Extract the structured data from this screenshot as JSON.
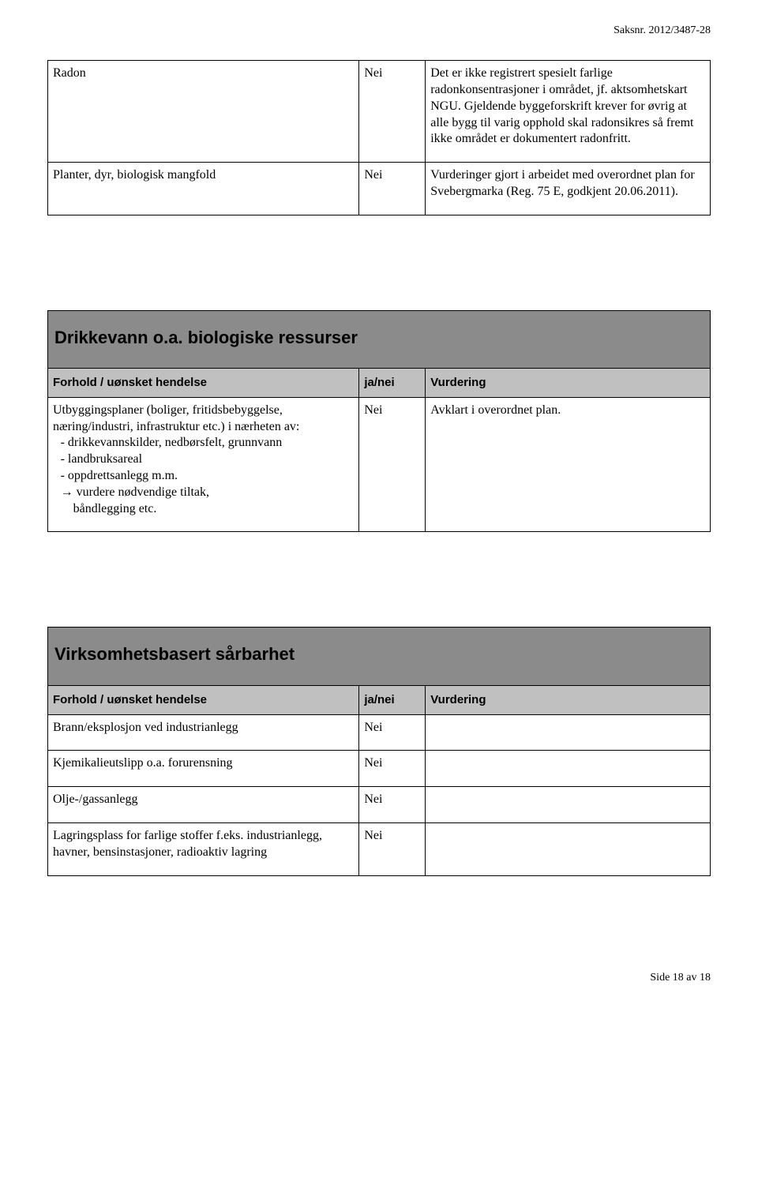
{
  "header": {
    "case_number": "Saksnr. 2012/3487-28"
  },
  "colors": {
    "section_bg": "#8b8b8b",
    "header_bg": "#c0c0c0",
    "border": "#000000",
    "text": "#000000",
    "background": "#ffffff"
  },
  "table1": {
    "rows": [
      {
        "c1": "Radon",
        "c2": "Nei",
        "c3": "Det er ikke registrert spesielt farlige radonkonsentrasjoner i området, jf. aktsomhetskart NGU. Gjeldende byggeforskrift krever for øvrig at alle bygg til varig opphold skal radonsikres så fremt ikke området er dokumentert radonfritt."
      },
      {
        "c1": "Planter, dyr, biologisk mangfold",
        "c2": "Nei",
        "c3": "Vurderinger gjort i arbeidet med overordnet plan for Svebergmarka (Reg. 75 E, godkjent 20.06.2011)."
      }
    ]
  },
  "section_drikkevann": {
    "title": "Drikkevann o.a. biologiske ressurser",
    "header": {
      "h1": "Forhold / uønsket hendelse",
      "h2": "ja/nei",
      "h3": "Vurdering"
    },
    "row": {
      "c1_intro": "Utbyggingsplaner (boliger, fritidsbebyggelse, næring/industri, infrastruktur etc.) i nærheten av:",
      "c1_items": [
        "drikkevannskilder, nedbørsfelt, grunnvann",
        "landbruksareal",
        "oppdrettsanlegg m.m."
      ],
      "c1_arrow1": "→ vurdere nødvendige tiltak,",
      "c1_arrow2": "båndlegging etc.",
      "c2": "Nei",
      "c3": "Avklart i overordnet plan."
    }
  },
  "section_virksomhet": {
    "title": "Virksomhetsbasert sårbarhet",
    "header": {
      "h1": "Forhold / uønsket hendelse",
      "h2": "ja/nei",
      "h3": "Vurdering"
    },
    "rows": [
      {
        "c1": "Brann/eksplosjon ved industrianlegg",
        "c2": "Nei",
        "c3": ""
      },
      {
        "c1": "Kjemikalieutslipp o.a. forurensning",
        "c2": "Nei",
        "c3": ""
      },
      {
        "c1": "Olje-/gassanlegg",
        "c2": "Nei",
        "c3": ""
      },
      {
        "c1": "Lagringsplass for farlige stoffer f.eks. industrianlegg, havner, bensinstasjoner, radioaktiv lagring",
        "c2": "Nei",
        "c3": ""
      }
    ]
  },
  "footer": {
    "page": "Side 18 av 18"
  }
}
